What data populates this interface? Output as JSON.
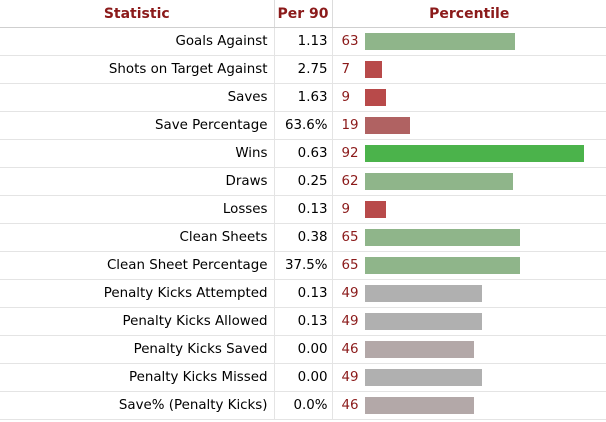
{
  "table": {
    "headers": {
      "statistic": "Statistic",
      "per90": "Per 90",
      "percentile": "Percentile"
    },
    "rows": [
      {
        "stat": "Goals Against",
        "per90": "1.13",
        "percentile": 63,
        "bar_color": "#8fb58a"
      },
      {
        "stat": "Shots on Target Against",
        "per90": "2.75",
        "percentile": 7,
        "bar_color": "#b84a4a"
      },
      {
        "stat": "Saves",
        "per90": "1.63",
        "percentile": 9,
        "bar_color": "#b84a4a"
      },
      {
        "stat": "Save Percentage",
        "per90": "63.6%",
        "percentile": 19,
        "bar_color": "#b06262"
      },
      {
        "stat": "Wins",
        "per90": "0.63",
        "percentile": 92,
        "bar_color": "#4bb34b"
      },
      {
        "stat": "Draws",
        "per90": "0.25",
        "percentile": 62,
        "bar_color": "#8fb58a"
      },
      {
        "stat": "Losses",
        "per90": "0.13",
        "percentile": 9,
        "bar_color": "#b84a4a"
      },
      {
        "stat": "Clean Sheets",
        "per90": "0.38",
        "percentile": 65,
        "bar_color": "#8fb58a"
      },
      {
        "stat": "Clean Sheet Percentage",
        "per90": "37.5%",
        "percentile": 65,
        "bar_color": "#8fb58a"
      },
      {
        "stat": "Penalty Kicks Attempted",
        "per90": "0.13",
        "percentile": 49,
        "bar_color": "#b0b0b0"
      },
      {
        "stat": "Penalty Kicks Allowed",
        "per90": "0.13",
        "percentile": 49,
        "bar_color": "#b0b0b0"
      },
      {
        "stat": "Penalty Kicks Saved",
        "per90": "0.00",
        "percentile": 46,
        "bar_color": "#b3a8a8"
      },
      {
        "stat": "Penalty Kicks Missed",
        "per90": "0.00",
        "percentile": 49,
        "bar_color": "#b0b0b0"
      },
      {
        "stat": "Save% (Penalty Kicks)",
        "per90": "0.0%",
        "percentile": 46,
        "bar_color": "#b3a8a8"
      }
    ]
  }
}
